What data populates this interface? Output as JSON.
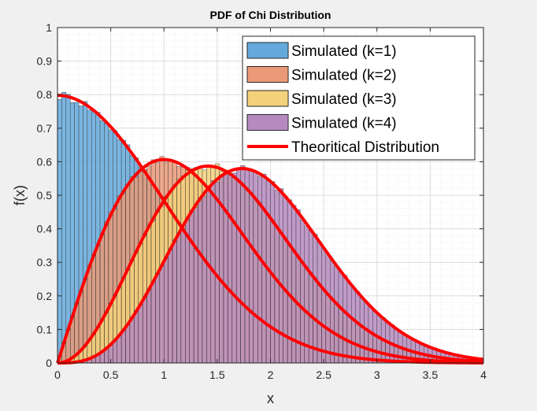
{
  "chart_data": {
    "type": "bar",
    "title": "PDF of Chi Distribution",
    "xlabel": "x",
    "ylabel": "f(x)",
    "xlim": [
      0,
      4
    ],
    "ylim": [
      0,
      1
    ],
    "xticks": [
      "0",
      "0.5",
      "1",
      "1.5",
      "2",
      "2.5",
      "3",
      "3.5",
      "4"
    ],
    "yticks": [
      "0",
      "0.1",
      "0.2",
      "0.3",
      "0.4",
      "0.5",
      "0.6",
      "0.7",
      "0.8",
      "0.9",
      "1"
    ],
    "grid": true,
    "minor_grid": true,
    "legend_position": "top-right",
    "bin_width": 0.04,
    "histograms": [
      {
        "name": "Simulated (k=1)",
        "color": "#63a9dc",
        "x_range": [
          0,
          2.6
        ]
      },
      {
        "name": "Simulated (k=2)",
        "color": "#ea9a78",
        "x_range": [
          0,
          3.5
        ]
      },
      {
        "name": "Simulated (k=3)",
        "color": "#f4d27c",
        "x_range": [
          0,
          3.8
        ]
      },
      {
        "name": "Simulated (k=4)",
        "color": "#b68ac0",
        "x_range": [
          0,
          4
        ]
      }
    ],
    "curves": [
      {
        "k": 1,
        "x": [
          0,
          0.25,
          0.5,
          0.75,
          1,
          1.25,
          1.5,
          1.75,
          2,
          2.5,
          3,
          3.5,
          4
        ],
        "y": [
          0.798,
          0.773,
          0.704,
          0.602,
          0.484,
          0.365,
          0.259,
          0.173,
          0.108,
          0.035,
          0.009,
          0.002,
          0.0003
        ]
      },
      {
        "k": 2,
        "x": [
          0,
          0.25,
          0.5,
          0.75,
          1,
          1.25,
          1.5,
          1.75,
          2,
          2.5,
          3,
          3.5,
          4
        ],
        "y": [
          0,
          0.242,
          0.441,
          0.566,
          0.607,
          0.573,
          0.487,
          0.378,
          0.271,
          0.11,
          0.033,
          0.008,
          0.001
        ]
      },
      {
        "k": 3,
        "x": [
          0,
          0.25,
          0.5,
          0.75,
          1,
          1.25,
          1.5,
          1.5,
          1.75,
          2,
          2.5,
          3,
          3.5,
          4
        ],
        "y": [
          0,
          0.048,
          0.176,
          0.338,
          0.484,
          0.57,
          0.582,
          0.582,
          0.53,
          0.432,
          0.219,
          0.089,
          0.029,
          0.008
        ]
      },
      {
        "k": 4,
        "x": [
          0,
          0.25,
          0.5,
          0.75,
          1,
          1.25,
          1.5,
          1.75,
          2,
          2.5,
          3,
          3.5,
          4
        ],
        "y": [
          0,
          0.008,
          0.055,
          0.159,
          0.303,
          0.448,
          0.548,
          0.579,
          0.541,
          0.343,
          0.15,
          0.045,
          0.01
        ]
      }
    ],
    "curve_color": "#ff0000",
    "legend": [
      {
        "label": "Simulated (k=1)",
        "kind": "patch",
        "color": "#63a9dc"
      },
      {
        "label": "Simulated (k=2)",
        "kind": "patch",
        "color": "#ea9a78"
      },
      {
        "label": "Simulated (k=3)",
        "kind": "patch",
        "color": "#f4d27c"
      },
      {
        "label": "Simulated (k=4)",
        "kind": "patch",
        "color": "#b68ac0"
      },
      {
        "label": "Theoritical Distribution",
        "kind": "line",
        "color": "#ff0000"
      }
    ]
  }
}
